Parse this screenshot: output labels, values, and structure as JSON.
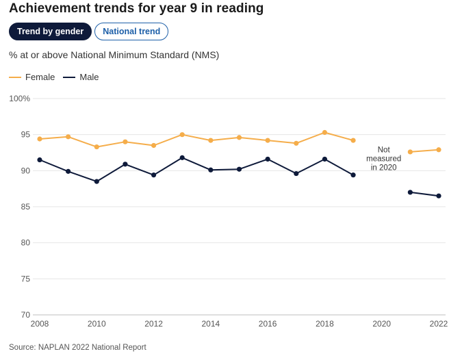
{
  "title": "Achievement trends for year 9 in reading",
  "tabs": [
    {
      "label": "Trend by gender",
      "active": true
    },
    {
      "label": "National trend",
      "active": false
    }
  ],
  "subtitle": "% at or above National Minimum Standard (NMS)",
  "source": "Source: NAPLAN 2022 National Report",
  "colors": {
    "female": "#f5ad4a",
    "male": "#0e1a3a",
    "grid": "#e6e6e6"
  },
  "chart_data": {
    "type": "line",
    "title": "Achievement trends for year 9 in reading",
    "ylabel": "% at or above National Minimum Standard (NMS)",
    "xlabel": "",
    "ylim": [
      70,
      100
    ],
    "xlim": [
      2008,
      2022
    ],
    "y_ticks": [
      70,
      75,
      80,
      85,
      90,
      95,
      100
    ],
    "y_tick_labels": [
      "70",
      "75",
      "80",
      "85",
      "90",
      "95",
      "100%"
    ],
    "x_ticks": [
      "2008",
      "2010",
      "2012",
      "2014",
      "2016",
      "2018",
      "2020",
      "2022"
    ],
    "grid": true,
    "legend": "top-left",
    "annotation": {
      "lines": [
        "Not",
        "measured",
        "in 2020"
      ],
      "x": 2020,
      "y": 91.2
    },
    "series": [
      {
        "name": "Female",
        "color": "#f5ad4a",
        "points": [
          [
            2008,
            94.4
          ],
          [
            2009,
            94.7
          ],
          [
            2010,
            93.3
          ],
          [
            2011,
            94.0
          ],
          [
            2012,
            93.5
          ],
          [
            2013,
            95.0
          ],
          [
            2014,
            94.2
          ],
          [
            2015,
            94.6
          ],
          [
            2016,
            94.2
          ],
          [
            2017,
            93.8
          ],
          [
            2018,
            95.3
          ],
          [
            2019,
            94.2
          ],
          [
            2021,
            92.6
          ],
          [
            2022,
            92.9
          ]
        ]
      },
      {
        "name": "Male",
        "color": "#0e1a3a",
        "points": [
          [
            2008,
            91.5
          ],
          [
            2009,
            89.9
          ],
          [
            2010,
            88.5
          ],
          [
            2011,
            90.9
          ],
          [
            2012,
            89.4
          ],
          [
            2013,
            91.8
          ],
          [
            2014,
            90.1
          ],
          [
            2015,
            90.2
          ],
          [
            2016,
            91.6
          ],
          [
            2017,
            89.6
          ],
          [
            2018,
            91.6
          ],
          [
            2019,
            89.4
          ],
          [
            2021,
            87.0
          ],
          [
            2022,
            86.5
          ]
        ]
      }
    ]
  }
}
